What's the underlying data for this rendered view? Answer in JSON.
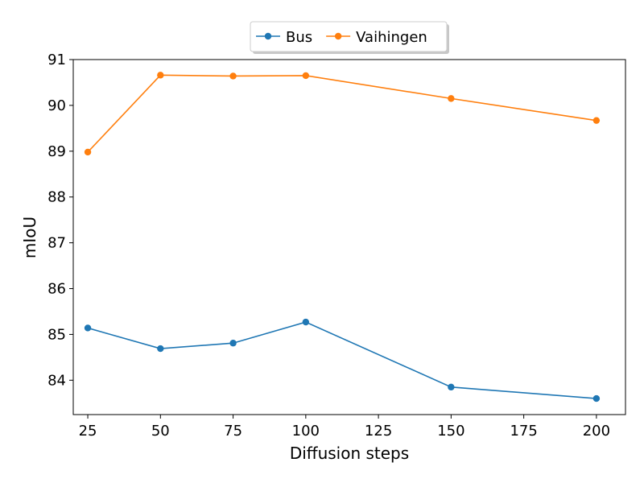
{
  "chart_data": {
    "type": "line",
    "xlabel": "Diffusion steps",
    "ylabel": "mIoU",
    "xlim": [
      20,
      210
    ],
    "ylim": [
      83.25,
      91.0
    ],
    "xticks": [
      25,
      50,
      75,
      100,
      125,
      150,
      175,
      200
    ],
    "yticks": [
      84,
      85,
      86,
      87,
      88,
      89,
      90,
      91
    ],
    "grid": false,
    "legend_position": "top-center",
    "series": [
      {
        "name": "Bus",
        "color": "#1f77b4",
        "x": [
          25,
          50,
          75,
          100,
          150,
          200
        ],
        "y": [
          85.14,
          84.69,
          84.81,
          85.27,
          83.85,
          83.6
        ]
      },
      {
        "name": "Vaihingen",
        "color": "#ff7f0e",
        "x": [
          25,
          50,
          75,
          100,
          150,
          200
        ],
        "y": [
          88.98,
          90.66,
          90.64,
          90.65,
          90.15,
          89.67
        ]
      }
    ]
  }
}
